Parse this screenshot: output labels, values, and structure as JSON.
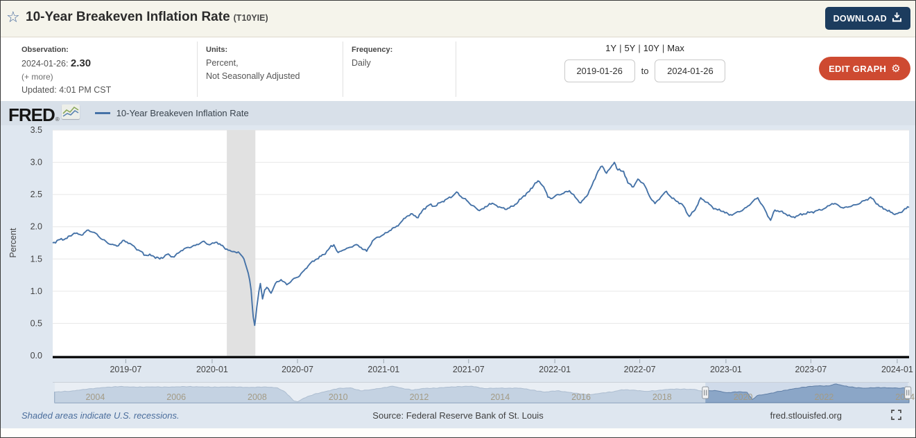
{
  "header": {
    "title": "10-Year Breakeven Inflation Rate",
    "series_id": "(T10YIE)",
    "download_label": "DOWNLOAD",
    "icons": {
      "star": "☆",
      "gear": "⚙"
    }
  },
  "info": {
    "observation": {
      "label": "Observation:",
      "date": "2024-01-26:",
      "value": "2.30",
      "more": "(+ more)",
      "updated": "Updated: 4:01 PM CST"
    },
    "units": {
      "label": "Units:",
      "line1": "Percent,",
      "line2": "Not Seasonally Adjusted"
    },
    "frequency": {
      "label": "Frequency:",
      "value": "Daily"
    }
  },
  "controls": {
    "ranges": [
      "1Y",
      "5Y",
      "10Y",
      "Max"
    ],
    "separator": "|",
    "date_from": "2019-01-26",
    "to_label": "to",
    "date_to": "2024-01-26",
    "edit_graph_label": "EDIT GRAPH"
  },
  "chart_header": {
    "brand": "FRED",
    "registered": "®",
    "legend_label": "10-Year Breakeven Inflation Rate",
    "legend_color": "#4572a7"
  },
  "footer": {
    "note": "Shaded areas indicate U.S. recessions.",
    "source": "Source: Federal Reserve Bank of St. Louis",
    "site": "fred.stlouisfed.org"
  },
  "chart_data": {
    "type": "line",
    "title": "10-Year Breakeven Inflation Rate",
    "ylabel": "Percent",
    "x_start": "2019-01-26",
    "x_end": "2024-01-26",
    "ylim": [
      0,
      3.5
    ],
    "yticks": [
      0.0,
      0.5,
      1.0,
      1.5,
      2.0,
      2.5,
      3.0,
      3.5
    ],
    "grid": true,
    "line_color": "#4572a7",
    "xticks": [
      {
        "label": "2019-07",
        "t": 5.12
      },
      {
        "label": "2020-01",
        "t": 11.17
      },
      {
        "label": "2020-07",
        "t": 17.15
      },
      {
        "label": "2021-01",
        "t": 23.19
      },
      {
        "label": "2021-07",
        "t": 29.14
      },
      {
        "label": "2022-01",
        "t": 35.18
      },
      {
        "label": "2022-07",
        "t": 41.13
      },
      {
        "label": "2023-01",
        "t": 47.17
      },
      {
        "label": "2023-07",
        "t": 53.12
      },
      {
        "label": "2024-01",
        "t": 59.17
      }
    ],
    "recessions": [
      {
        "start": "2020-02",
        "end": "2020-04",
        "from_month": 12.2,
        "to_month": 14.2
      }
    ],
    "series": [
      {
        "name": "10-Year Breakeven Inflation Rate",
        "color": "#4572a7",
        "x_unit": "months_since_2019-01-26",
        "points": [
          [
            0,
            1.75
          ],
          [
            0.5,
            1.8
          ],
          [
            1,
            1.82
          ],
          [
            1.5,
            1.9
          ],
          [
            2,
            1.87
          ],
          [
            2.5,
            1.95
          ],
          [
            3,
            1.9
          ],
          [
            3.5,
            1.8
          ],
          [
            4,
            1.73
          ],
          [
            4.5,
            1.7
          ],
          [
            5,
            1.79
          ],
          [
            5.5,
            1.73
          ],
          [
            6,
            1.64
          ],
          [
            6.5,
            1.56
          ],
          [
            7,
            1.55
          ],
          [
            7.5,
            1.5
          ],
          [
            8,
            1.57
          ],
          [
            8.5,
            1.53
          ],
          [
            9,
            1.63
          ],
          [
            9.5,
            1.68
          ],
          [
            10,
            1.71
          ],
          [
            10.5,
            1.77
          ],
          [
            11,
            1.72
          ],
          [
            11.5,
            1.76
          ],
          [
            12,
            1.68
          ],
          [
            12.5,
            1.62
          ],
          [
            13,
            1.61
          ],
          [
            13.4,
            1.5
          ],
          [
            13.7,
            1.28
          ],
          [
            13.9,
            1.02
          ],
          [
            14.05,
            0.6
          ],
          [
            14.15,
            0.47
          ],
          [
            14.3,
            0.75
          ],
          [
            14.45,
            1.0
          ],
          [
            14.55,
            1.12
          ],
          [
            14.7,
            0.88
          ],
          [
            14.85,
            1.02
          ],
          [
            15,
            1.06
          ],
          [
            15.3,
            0.97
          ],
          [
            15.6,
            1.12
          ],
          [
            16,
            1.18
          ],
          [
            16.4,
            1.1
          ],
          [
            16.8,
            1.18
          ],
          [
            17.2,
            1.22
          ],
          [
            17.6,
            1.32
          ],
          [
            18,
            1.42
          ],
          [
            18.5,
            1.5
          ],
          [
            19,
            1.57
          ],
          [
            19.4,
            1.67
          ],
          [
            19.7,
            1.72
          ],
          [
            20,
            1.6
          ],
          [
            20.4,
            1.64
          ],
          [
            20.8,
            1.68
          ],
          [
            21.2,
            1.72
          ],
          [
            21.6,
            1.68
          ],
          [
            22,
            1.62
          ],
          [
            22.4,
            1.78
          ],
          [
            22.8,
            1.84
          ],
          [
            23.2,
            1.88
          ],
          [
            23.6,
            1.94
          ],
          [
            24,
            1.99
          ],
          [
            24.4,
            2.07
          ],
          [
            24.8,
            2.16
          ],
          [
            25.2,
            2.2
          ],
          [
            25.6,
            2.14
          ],
          [
            26,
            2.28
          ],
          [
            26.4,
            2.34
          ],
          [
            26.8,
            2.32
          ],
          [
            27.2,
            2.38
          ],
          [
            27.6,
            2.43
          ],
          [
            28,
            2.47
          ],
          [
            28.3,
            2.54
          ],
          [
            28.6,
            2.47
          ],
          [
            29,
            2.41
          ],
          [
            29.4,
            2.33
          ],
          [
            29.8,
            2.26
          ],
          [
            30.2,
            2.28
          ],
          [
            30.6,
            2.36
          ],
          [
            31,
            2.34
          ],
          [
            31.4,
            2.3
          ],
          [
            31.8,
            2.27
          ],
          [
            32.2,
            2.32
          ],
          [
            32.6,
            2.38
          ],
          [
            33,
            2.48
          ],
          [
            33.4,
            2.55
          ],
          [
            33.8,
            2.68
          ],
          [
            34.1,
            2.7
          ],
          [
            34.4,
            2.62
          ],
          [
            34.7,
            2.46
          ],
          [
            35,
            2.44
          ],
          [
            35.4,
            2.5
          ],
          [
            35.8,
            2.52
          ],
          [
            36.2,
            2.56
          ],
          [
            36.6,
            2.46
          ],
          [
            37,
            2.37
          ],
          [
            37.4,
            2.47
          ],
          [
            37.8,
            2.65
          ],
          [
            38.2,
            2.86
          ],
          [
            38.5,
            2.94
          ],
          [
            38.8,
            2.83
          ],
          [
            39.1,
            2.92
          ],
          [
            39.35,
            3.0
          ],
          [
            39.6,
            2.88
          ],
          [
            40,
            2.86
          ],
          [
            40.3,
            2.68
          ],
          [
            40.7,
            2.62
          ],
          [
            41,
            2.74
          ],
          [
            41.4,
            2.67
          ],
          [
            41.8,
            2.48
          ],
          [
            42.2,
            2.36
          ],
          [
            42.6,
            2.46
          ],
          [
            43,
            2.55
          ],
          [
            43.4,
            2.44
          ],
          [
            43.8,
            2.39
          ],
          [
            44.2,
            2.32
          ],
          [
            44.6,
            2.16
          ],
          [
            45,
            2.26
          ],
          [
            45.4,
            2.45
          ],
          [
            45.8,
            2.38
          ],
          [
            46.2,
            2.31
          ],
          [
            46.6,
            2.26
          ],
          [
            47,
            2.24
          ],
          [
            47.4,
            2.18
          ],
          [
            47.8,
            2.21
          ],
          [
            48.2,
            2.24
          ],
          [
            48.6,
            2.3
          ],
          [
            49,
            2.38
          ],
          [
            49.4,
            2.45
          ],
          [
            49.7,
            2.34
          ],
          [
            50,
            2.22
          ],
          [
            50.3,
            2.1
          ],
          [
            50.6,
            2.26
          ],
          [
            51,
            2.24
          ],
          [
            51.4,
            2.19
          ],
          [
            51.8,
            2.15
          ],
          [
            52.2,
            2.17
          ],
          [
            52.6,
            2.2
          ],
          [
            53,
            2.22
          ],
          [
            53.4,
            2.24
          ],
          [
            53.8,
            2.26
          ],
          [
            54.2,
            2.3
          ],
          [
            54.6,
            2.36
          ],
          [
            55,
            2.34
          ],
          [
            55.4,
            2.29
          ],
          [
            55.8,
            2.31
          ],
          [
            56.2,
            2.34
          ],
          [
            56.6,
            2.37
          ],
          [
            57,
            2.42
          ],
          [
            57.3,
            2.46
          ],
          [
            57.6,
            2.39
          ],
          [
            58,
            2.31
          ],
          [
            58.4,
            2.26
          ],
          [
            59,
            2.19
          ],
          [
            59.4,
            2.22
          ],
          [
            59.7,
            2.28
          ],
          [
            60,
            2.3
          ]
        ]
      }
    ],
    "navigator": {
      "range": [
        2003.0,
        2024.1
      ],
      "ymax": 3.1,
      "selection": [
        2019.07,
        2024.07
      ],
      "area_fill": "#8ea9c8",
      "area_stroke": "#5b7ba1",
      "year_labels": [
        {
          "year": 2004,
          "label": "2004"
        },
        {
          "year": 2006,
          "label": "2006"
        },
        {
          "year": 2008,
          "label": "2008"
        },
        {
          "year": 2010,
          "label": "2010"
        },
        {
          "year": 2012,
          "label": "2012"
        },
        {
          "year": 2014,
          "label": "2014"
        },
        {
          "year": 2016,
          "label": "2016"
        },
        {
          "year": 2018,
          "label": "2018"
        },
        {
          "year": 2020,
          "label": "2020"
        },
        {
          "year": 2022,
          "label": "2022"
        },
        {
          "year": 2024,
          "label": "2024"
        }
      ],
      "points": [
        [
          2003,
          1.65
        ],
        [
          2003.4,
          1.8
        ],
        [
          2003.8,
          2.1
        ],
        [
          2004.2,
          2.35
        ],
        [
          2004.6,
          2.5
        ],
        [
          2005,
          2.4
        ],
        [
          2005.4,
          2.45
        ],
        [
          2005.8,
          2.4
        ],
        [
          2006.2,
          2.5
        ],
        [
          2006.6,
          2.45
        ],
        [
          2007,
          2.4
        ],
        [
          2007.4,
          2.45
        ],
        [
          2007.8,
          2.35
        ],
        [
          2008.2,
          2.45
        ],
        [
          2008.5,
          2.3
        ],
        [
          2008.7,
          1.6
        ],
        [
          2008.9,
          0.3
        ],
        [
          2009,
          0.15
        ],
        [
          2009.15,
          0.7
        ],
        [
          2009.4,
          1.3
        ],
        [
          2009.7,
          1.75
        ],
        [
          2010,
          2.2
        ],
        [
          2010.3,
          2.3
        ],
        [
          2010.55,
          1.85
        ],
        [
          2010.8,
          2.0
        ],
        [
          2011.1,
          2.3
        ],
        [
          2011.35,
          2.55
        ],
        [
          2011.6,
          2.2
        ],
        [
          2011.85,
          1.95
        ],
        [
          2012.1,
          2.2
        ],
        [
          2012.4,
          2.25
        ],
        [
          2012.7,
          2.4
        ],
        [
          2013,
          2.5
        ],
        [
          2013.3,
          2.55
        ],
        [
          2013.6,
          2.2
        ],
        [
          2013.9,
          2.25
        ],
        [
          2014.2,
          2.25
        ],
        [
          2014.5,
          2.25
        ],
        [
          2014.8,
          1.95
        ],
        [
          2015.1,
          1.65
        ],
        [
          2015.4,
          1.85
        ],
        [
          2015.7,
          1.6
        ],
        [
          2016,
          1.35
        ],
        [
          2016.2,
          1.2
        ],
        [
          2016.5,
          1.5
        ],
        [
          2016.8,
          1.7
        ],
        [
          2017,
          2.0
        ],
        [
          2017.3,
          1.95
        ],
        [
          2017.6,
          1.75
        ],
        [
          2017.9,
          1.9
        ],
        [
          2018.2,
          2.1
        ],
        [
          2018.5,
          2.1
        ],
        [
          2018.8,
          2.05
        ],
        [
          2019,
          1.75
        ],
        [
          2019.3,
          1.9
        ],
        [
          2019.6,
          1.55
        ],
        [
          2019.9,
          1.7
        ],
        [
          2020.1,
          1.6
        ],
        [
          2020.23,
          0.5
        ],
        [
          2020.35,
          1.1
        ],
        [
          2020.6,
          1.35
        ],
        [
          2020.9,
          1.75
        ],
        [
          2021.2,
          2.1
        ],
        [
          2021.5,
          2.4
        ],
        [
          2021.8,
          2.6
        ],
        [
          2022.1,
          2.6
        ],
        [
          2022.3,
          2.9
        ],
        [
          2022.5,
          2.6
        ],
        [
          2022.75,
          2.35
        ],
        [
          2023,
          2.25
        ],
        [
          2023.3,
          2.35
        ],
        [
          2023.6,
          2.3
        ],
        [
          2023.9,
          2.25
        ],
        [
          2024.07,
          2.3
        ]
      ]
    }
  }
}
